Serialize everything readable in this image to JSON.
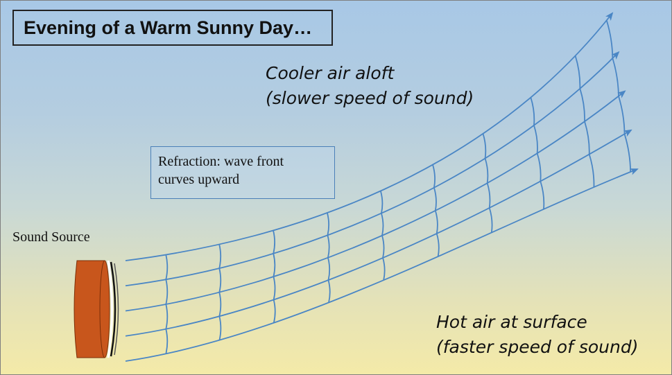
{
  "title": "Evening of a Warm Sunny Day…",
  "cooler_label": {
    "line1": "Cooler air aloft",
    "line2": "(slower speed of sound)"
  },
  "hot_label": {
    "line1": "Hot air at surface",
    "line2": "(faster speed of sound)"
  },
  "note": {
    "line1": "Refraction: wave front",
    "line2": "curves upward"
  },
  "source_label": "Sound Source",
  "colors": {
    "wave_lines": "#4a86c5",
    "source_body": "#c8561c",
    "sky_top": "#a8c8e6",
    "ground": "#f4eaa8"
  },
  "ray_count": 5,
  "wavefront_count": 10
}
